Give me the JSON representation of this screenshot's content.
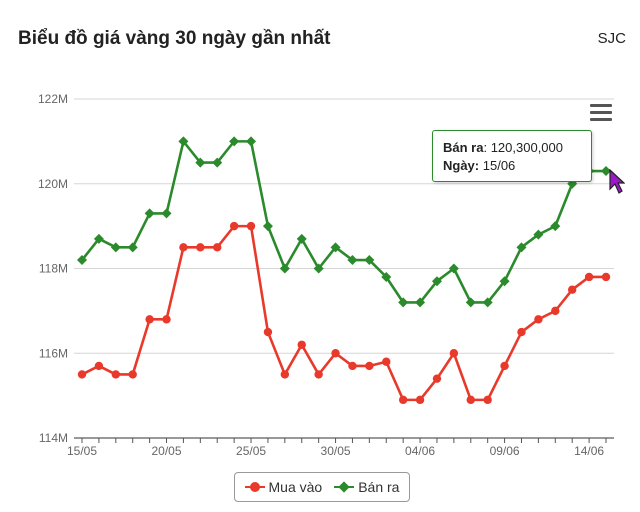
{
  "header": {
    "title": "Biểu đồ giá vàng 30 ngày gần nhất",
    "source": "SJC"
  },
  "tooltip": {
    "sell_label": "Bán ra",
    "sell_value": "120,300,000",
    "date_label": "Ngày:",
    "date_value": "15/06"
  },
  "colors": {
    "buy": "#e8392b",
    "sell": "#2b8a2b"
  },
  "icons": {
    "menu": "hamburger-menu-icon",
    "cursor": "mouse-pointer-icon"
  },
  "chart_data": {
    "type": "line",
    "title": "Biểu đồ giá vàng 30 ngày gần nhất",
    "x": [
      "15/05",
      "16/05",
      "17/05",
      "18/05",
      "19/05",
      "20/05",
      "21/05",
      "22/05",
      "23/05",
      "24/05",
      "25/05",
      "26/05",
      "27/05",
      "28/05",
      "29/05",
      "30/05",
      "31/05",
      "01/06",
      "02/06",
      "03/06",
      "04/06",
      "05/06",
      "06/06",
      "07/06",
      "08/06",
      "09/06",
      "10/06",
      "11/06",
      "12/06",
      "13/06",
      "14/06",
      "15/06"
    ],
    "xticks": [
      "15/05",
      "20/05",
      "25/05",
      "30/05",
      "04/06",
      "09/06",
      "14/06"
    ],
    "yticks": [
      "114M",
      "116M",
      "118M",
      "120M",
      "122M"
    ],
    "ylim": [
      114000000,
      122000000
    ],
    "grid": true,
    "legend_position": "bottom-center",
    "series": [
      {
        "name": "Mua vào",
        "values": [
          115500000,
          115700000,
          115500000,
          115500000,
          116800000,
          116800000,
          118500000,
          118500000,
          118500000,
          119000000,
          119000000,
          116500000,
          115500000,
          116200000,
          115500000,
          116000000,
          115700000,
          115700000,
          115800000,
          114900000,
          114900000,
          115400000,
          116000000,
          114900000,
          114900000,
          115700000,
          116500000,
          116800000,
          117000000,
          117500000,
          117800000,
          117800000
        ]
      },
      {
        "name": "Bán ra",
        "values": [
          118200000,
          118700000,
          118500000,
          118500000,
          119300000,
          119300000,
          121000000,
          120500000,
          120500000,
          121000000,
          121000000,
          119000000,
          118000000,
          118700000,
          118000000,
          118500000,
          118200000,
          118200000,
          117800000,
          117200000,
          117200000,
          117700000,
          118000000,
          117200000,
          117200000,
          117700000,
          118500000,
          118800000,
          119000000,
          120000000,
          120300000,
          120300000
        ]
      }
    ]
  }
}
